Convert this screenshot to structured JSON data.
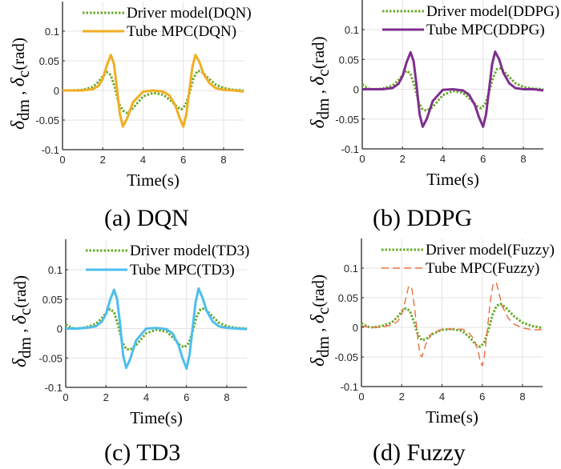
{
  "figure": {
    "colors": {
      "driver": "#6aaa2a",
      "dqn": "#f0ae22",
      "ddpg": "#7e2f8e",
      "td3": "#4dbeee",
      "fuzzy": "#e9703e",
      "axis": "#262626",
      "grid": "#e3e3e3"
    }
  },
  "chart_data": [
    {
      "type": "line",
      "caption": "(a) DQN",
      "xlabel": "Time(s)",
      "ylabel": "δ_dm , δ_c(rad)",
      "xlim": [
        0,
        9
      ],
      "ylim": [
        -0.1,
        0.15
      ],
      "xticks": [
        "0",
        "2",
        "4",
        "6",
        "8"
      ],
      "yticks": [
        "-0.1",
        "-0.05",
        "0",
        "0.05",
        "0.1"
      ],
      "grid": true,
      "legend_position": "top-right",
      "series": [
        {
          "name": "Driver model(DQN)",
          "style": "dotted",
          "color_key": "driver",
          "x": [
            0,
            0.5,
            1,
            1.5,
            1.8,
            2,
            2.2,
            2.4,
            2.6,
            2.8,
            3,
            3.2,
            3.5,
            4,
            4.5,
            5,
            5.4,
            5.7,
            5.9,
            6.1,
            6.3,
            6.5,
            6.7,
            6.9,
            7.2,
            7.6,
            8,
            8.5,
            9
          ],
          "y": [
            0,
            0,
            0.001,
            0.006,
            0.015,
            0.024,
            0.031,
            0.026,
            0.005,
            -0.022,
            -0.034,
            -0.038,
            -0.03,
            -0.01,
            -0.004,
            -0.007,
            -0.018,
            -0.028,
            -0.032,
            -0.025,
            -0.005,
            0.02,
            0.033,
            0.032,
            0.022,
            0.01,
            0.004,
            0.001,
            0
          ]
        },
        {
          "name": "Tube MPC(DQN)",
          "style": "solid",
          "color_key": "dqn",
          "x": [
            0,
            0.5,
            1,
            1.5,
            1.8,
            2,
            2.2,
            2.4,
            2.55,
            2.7,
            2.85,
            3,
            3.2,
            3.5,
            4,
            4.5,
            5,
            5.3,
            5.6,
            5.8,
            6,
            6.15,
            6.3,
            6.45,
            6.6,
            6.8,
            7,
            7.3,
            7.6,
            8,
            8.5,
            9
          ],
          "y": [
            0,
            0,
            0,
            0.002,
            0.008,
            0.02,
            0.042,
            0.06,
            0.045,
            0.005,
            -0.04,
            -0.061,
            -0.048,
            -0.02,
            -0.002,
            0,
            -0.002,
            -0.008,
            -0.025,
            -0.045,
            -0.061,
            -0.04,
            0,
            0.04,
            0.06,
            0.048,
            0.028,
            0.012,
            0.004,
            0.001,
            0,
            -0.002
          ]
        }
      ]
    },
    {
      "type": "line",
      "caption": "(b) DDPG",
      "xlabel": "Time(s)",
      "ylabel": "δ_dm , δ_c(rad)",
      "xlim": [
        0,
        9
      ],
      "ylim": [
        -0.1,
        0.15
      ],
      "xticks": [
        "0",
        "2",
        "4",
        "6",
        "8"
      ],
      "yticks": [
        "-0.1",
        "-0.05",
        "0",
        "0.05",
        "0.1"
      ],
      "grid": true,
      "legend_position": "top-right",
      "series": [
        {
          "name": "Driver model(DDPG)",
          "style": "dotted",
          "color_key": "driver",
          "x": [
            0,
            0.3,
            0.6,
            1,
            1.5,
            1.8,
            2,
            2.2,
            2.4,
            2.6,
            2.8,
            3,
            3.2,
            3.5,
            4,
            4.5,
            5,
            5.4,
            5.7,
            5.9,
            6.1,
            6.3,
            6.5,
            6.7,
            6.9,
            7.2,
            7.6,
            8,
            8.5,
            9
          ],
          "y": [
            0.008,
            0.001,
            0,
            0.001,
            0.006,
            0.015,
            0.024,
            0.031,
            0.026,
            0.005,
            -0.022,
            -0.034,
            -0.036,
            -0.03,
            -0.01,
            -0.003,
            -0.006,
            -0.018,
            -0.028,
            -0.032,
            -0.025,
            -0.005,
            0.02,
            0.034,
            0.035,
            0.024,
            0.01,
            0.004,
            0.001,
            0
          ]
        },
        {
          "name": "Tube MPC(DDPG)",
          "style": "solid",
          "color_key": "ddpg",
          "x": [
            0,
            0.5,
            1,
            1.5,
            1.8,
            2,
            2.2,
            2.4,
            2.55,
            2.7,
            2.85,
            3,
            3.2,
            3.5,
            4,
            4.5,
            5,
            5.3,
            5.6,
            5.8,
            6,
            6.15,
            6.3,
            6.45,
            6.6,
            6.8,
            7,
            7.3,
            7.6,
            8,
            8.5,
            9
          ],
          "y": [
            0,
            0,
            0,
            0.002,
            0.009,
            0.022,
            0.045,
            0.062,
            0.047,
            0.006,
            -0.042,
            -0.063,
            -0.05,
            -0.02,
            -0.001,
            0,
            -0.002,
            -0.009,
            -0.027,
            -0.047,
            -0.063,
            -0.042,
            0,
            0.042,
            0.063,
            0.05,
            0.028,
            0.01,
            0.002,
            0,
            0,
            -0.002
          ]
        }
      ]
    },
    {
      "type": "line",
      "caption": "(c) TD3",
      "xlabel": "Time(s)",
      "ylabel": "δ_dm , δ_c(rad)",
      "xlim": [
        0,
        9
      ],
      "ylim": [
        -0.1,
        0.15
      ],
      "xticks": [
        "0",
        "2",
        "4",
        "6",
        "8"
      ],
      "yticks": [
        "-0.1",
        "-0.05",
        "0",
        "0.05",
        "0.1"
      ],
      "grid": true,
      "legend_position": "top-right",
      "series": [
        {
          "name": "Driver model(TD3)",
          "style": "dotted",
          "color_key": "driver",
          "x": [
            0,
            0.3,
            0.6,
            1,
            1.5,
            1.8,
            2,
            2.2,
            2.4,
            2.6,
            2.8,
            3,
            3.2,
            3.5,
            4,
            4.5,
            5,
            5.4,
            5.7,
            5.9,
            6.1,
            6.3,
            6.5,
            6.7,
            6.9,
            7.2,
            7.6,
            8,
            8.5,
            9
          ],
          "y": [
            0.007,
            0.001,
            0,
            0.002,
            0.008,
            0.018,
            0.027,
            0.033,
            0.028,
            0.006,
            -0.022,
            -0.035,
            -0.036,
            -0.028,
            -0.008,
            -0.002,
            -0.005,
            -0.018,
            -0.029,
            -0.032,
            -0.025,
            -0.005,
            0.02,
            0.033,
            0.034,
            0.024,
            0.01,
            0.004,
            0.001,
            0
          ]
        },
        {
          "name": "Tube MPC(TD3)",
          "style": "solid",
          "color_key": "td3",
          "x": [
            0,
            0.5,
            1,
            1.5,
            1.8,
            2,
            2.2,
            2.4,
            2.55,
            2.7,
            2.85,
            3,
            3.2,
            3.5,
            4,
            4.5,
            5,
            5.3,
            5.6,
            5.8,
            6,
            6.15,
            6.3,
            6.45,
            6.6,
            6.8,
            7,
            7.3,
            7.6,
            8,
            8.5,
            9
          ],
          "y": [
            0,
            0,
            0.001,
            0.004,
            0.012,
            0.025,
            0.048,
            0.066,
            0.05,
            0.008,
            -0.045,
            -0.067,
            -0.052,
            -0.02,
            0,
            0.001,
            -0.001,
            -0.008,
            -0.028,
            -0.05,
            -0.068,
            -0.045,
            0,
            0.045,
            0.068,
            0.052,
            0.03,
            0.012,
            0.004,
            0.001,
            0,
            -0.001
          ]
        }
      ]
    },
    {
      "type": "line",
      "caption": "(d) Fuzzy",
      "xlabel": "Time(s)",
      "ylabel": "δ_dm , δ_c(rad)",
      "xlim": [
        0,
        9
      ],
      "ylim": [
        -0.1,
        0.15
      ],
      "xticks": [
        "0",
        "2",
        "4",
        "6",
        "8"
      ],
      "yticks": [
        "-0.1",
        "-0.05",
        "0",
        "0.05",
        "0.1"
      ],
      "grid": true,
      "legend_position": "top-right",
      "series": [
        {
          "name": "Driver model(Fuzzy)",
          "style": "dotted",
          "color_key": "driver",
          "x": [
            0,
            0.3,
            0.6,
            1,
            1.5,
            1.8,
            2,
            2.2,
            2.4,
            2.6,
            2.8,
            3,
            3.2,
            3.5,
            4,
            4.5,
            5,
            5.4,
            5.7,
            5.9,
            6.1,
            6.3,
            6.5,
            6.7,
            6.9,
            7.2,
            7.6,
            8,
            8.5,
            9
          ],
          "y": [
            0.007,
            0.001,
            0,
            0.002,
            0.008,
            0.018,
            0.027,
            0.032,
            0.028,
            0.01,
            -0.012,
            -0.022,
            -0.02,
            -0.012,
            -0.004,
            -0.003,
            -0.006,
            -0.018,
            -0.03,
            -0.033,
            -0.025,
            -0.005,
            0.02,
            0.036,
            0.04,
            0.032,
            0.018,
            0.008,
            0.002,
            -0.001
          ]
        },
        {
          "name": "Tube MPC(Fuzzy)",
          "style": "dashed",
          "color_key": "fuzzy",
          "x": [
            0,
            0.5,
            1,
            1.5,
            1.8,
            2,
            2.2,
            2.35,
            2.5,
            2.65,
            2.8,
            2.9,
            3,
            3.2,
            3.5,
            4,
            4.5,
            5,
            5.3,
            5.6,
            5.8,
            5.9,
            6,
            6.1,
            6.25,
            6.4,
            6.55,
            6.7,
            6.85,
            7,
            7.3,
            7.6,
            8,
            8.5,
            9
          ],
          "y": [
            0.002,
            0,
            0,
            0.004,
            0.01,
            0.022,
            0.048,
            0.07,
            0.066,
            0.03,
            -0.02,
            -0.045,
            -0.05,
            -0.028,
            -0.01,
            -0.003,
            -0.003,
            -0.003,
            -0.008,
            -0.02,
            -0.04,
            -0.058,
            -0.065,
            -0.05,
            -0.005,
            0.045,
            0.075,
            0.075,
            0.055,
            0.035,
            0.015,
            0.005,
            -0.001,
            -0.004,
            -0.004
          ]
        }
      ]
    }
  ]
}
